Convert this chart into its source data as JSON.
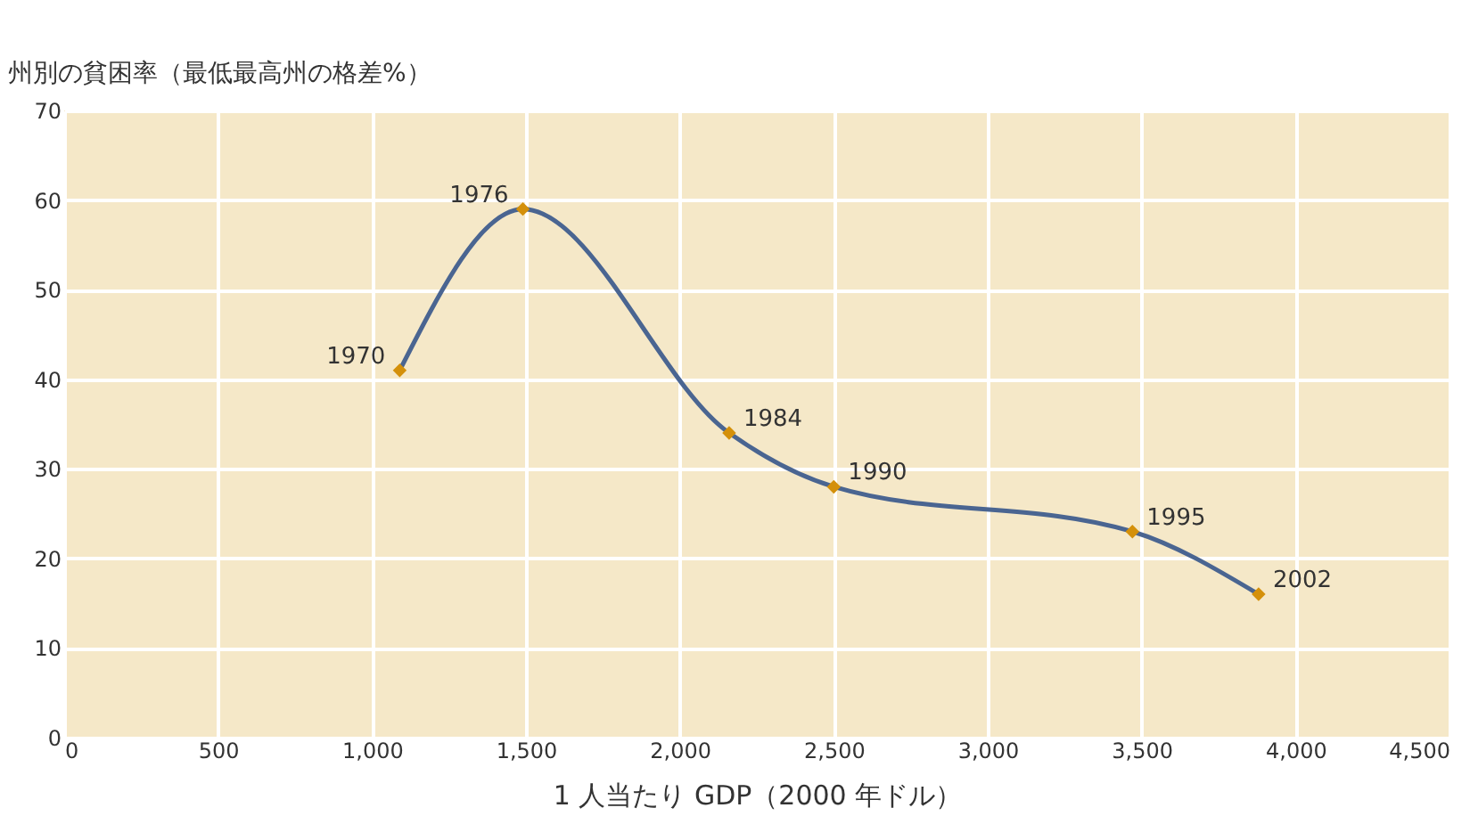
{
  "chart_data": {
    "type": "line",
    "ylabel": "州別の貧困率（最低最高州の格差%）",
    "xlabel": "1 人当たり GDP（2000 年ドル）",
    "x": [
      1090,
      1490,
      2160,
      2500,
      3470,
      3880
    ],
    "series": [
      {
        "type": "line",
        "color": "#4a6591",
        "marker": "none",
        "values": [
          41,
          59,
          34,
          28,
          23,
          16
        ]
      },
      {
        "type": "scatter",
        "color": "#d4900a",
        "marker": "diamond",
        "values": [
          41,
          59,
          34,
          28,
          23,
          16
        ]
      }
    ],
    "annotations": [
      {
        "text": "1970",
        "x": 1090,
        "y": 41
      },
      {
        "text": "1976",
        "x": 1490,
        "y": 59
      },
      {
        "text": "1984",
        "x": 2160,
        "y": 34
      },
      {
        "text": "1990",
        "x": 2500,
        "y": 28
      },
      {
        "text": "1995",
        "x": 3470,
        "y": 23
      },
      {
        "text": "2002",
        "x": 3880,
        "y": 16
      }
    ],
    "xlim": [
      0,
      4500
    ],
    "xticks": [
      0,
      500,
      {
        "value": 1000,
        "label": "1,000"
      },
      {
        "value": 1500,
        "label": "1,500"
      },
      {
        "value": 2000,
        "label": "2,000"
      },
      {
        "value": 2500,
        "label": "2,500"
      },
      {
        "value": 3000,
        "label": "3,000"
      },
      {
        "value": 3500,
        "label": "3,500"
      },
      {
        "value": 4000,
        "label": "4,000"
      },
      {
        "value": 4500,
        "label": "4,500"
      }
    ],
    "ylim": [
      0,
      70
    ],
    "yticks": [
      0,
      10,
      20,
      30,
      40,
      50,
      60,
      70
    ],
    "grid": true
  }
}
